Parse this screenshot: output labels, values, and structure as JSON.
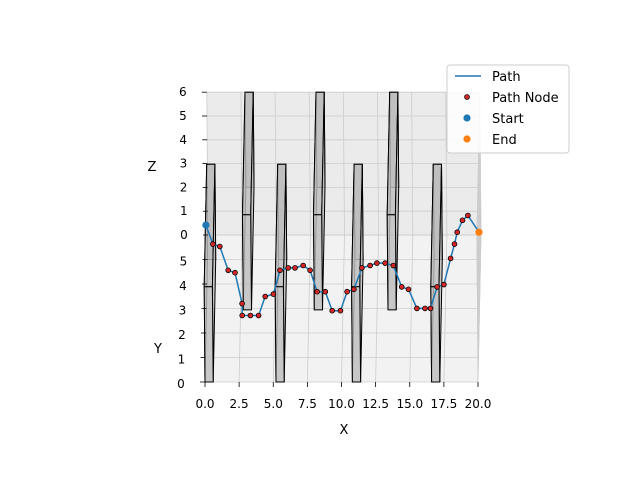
{
  "chart_data": {
    "type": "line",
    "projection": "3d",
    "axes": {
      "x": {
        "label": "X",
        "range": [
          0,
          20
        ],
        "ticks": [
          "0.0",
          "2.5",
          "5.0",
          "7.5",
          "10.0",
          "12.5",
          "15.0",
          "17.5",
          "20.0"
        ]
      },
      "y": {
        "label": "Y",
        "range": [
          0,
          6
        ],
        "ticks": [
          "0",
          "1",
          "2",
          "3",
          "4",
          "5"
        ]
      },
      "z": {
        "label": "Z",
        "range": [
          0,
          6
        ],
        "ticks": [
          "0",
          "1",
          "2",
          "3",
          "4",
          "5",
          "6"
        ]
      }
    },
    "grid": true,
    "legend": {
      "placement": "top-right",
      "entries": [
        {
          "label": "Path",
          "marker": "line",
          "color": "#1f77b4"
        },
        {
          "label": "Path Node",
          "marker": "dot",
          "color": "#d62728"
        },
        {
          "label": "Start",
          "marker": "dot",
          "color": "#1f77b4"
        },
        {
          "label": "End",
          "marker": "dot",
          "color": "#ff7f0e"
        }
      ]
    },
    "obstacle_color": "#bdbdbd",
    "obstacles": [
      {
        "x": [
          0.0,
          0.6
        ],
        "y": [
          0,
          5
        ],
        "z": [
          0,
          4
        ]
      },
      {
        "x": [
          2.8,
          3.4
        ],
        "y": [
          1,
          6
        ],
        "z": [
          2,
          6
        ]
      },
      {
        "x": [
          5.2,
          5.8
        ],
        "y": [
          0,
          5
        ],
        "z": [
          0,
          4
        ]
      },
      {
        "x": [
          8.0,
          8.6
        ],
        "y": [
          1,
          6
        ],
        "z": [
          2,
          6
        ]
      },
      {
        "x": [
          10.8,
          11.4
        ],
        "y": [
          0,
          5
        ],
        "z": [
          0,
          4
        ]
      },
      {
        "x": [
          13.4,
          14.0
        ],
        "y": [
          1,
          6
        ],
        "z": [
          2,
          6
        ]
      },
      {
        "x": [
          16.6,
          17.2
        ],
        "y": [
          0,
          5
        ],
        "z": [
          0,
          4
        ]
      }
    ],
    "path": {
      "start": {
        "x": 0.0,
        "y": 3.2,
        "z": 3.3
      },
      "end": {
        "x": 20.0,
        "y": 3.2,
        "z": 3.0
      },
      "nodes": [
        {
          "x": 0.5,
          "y": 3.2,
          "z": 2.5
        },
        {
          "x": 1.0,
          "y": 3.2,
          "z": 2.4
        },
        {
          "x": 1.6,
          "y": 3.2,
          "z": 1.4
        },
        {
          "x": 2.1,
          "y": 3.2,
          "z": 1.3
        },
        {
          "x": 2.6,
          "y": 3.2,
          "z": 0.0
        },
        {
          "x": 2.6,
          "y": 3.2,
          "z": -0.5
        },
        {
          "x": 3.2,
          "y": 3.2,
          "z": -0.5
        },
        {
          "x": 3.8,
          "y": 3.2,
          "z": -0.5
        },
        {
          "x": 4.3,
          "y": 3.2,
          "z": 0.3
        },
        {
          "x": 4.9,
          "y": 3.2,
          "z": 0.4
        },
        {
          "x": 5.4,
          "y": 3.2,
          "z": 1.4
        },
        {
          "x": 6.0,
          "y": 3.2,
          "z": 1.5
        },
        {
          "x": 6.5,
          "y": 3.2,
          "z": 1.5
        },
        {
          "x": 7.1,
          "y": 3.2,
          "z": 1.6
        },
        {
          "x": 7.6,
          "y": 3.2,
          "z": 1.4
        },
        {
          "x": 8.1,
          "y": 3.2,
          "z": 0.5
        },
        {
          "x": 8.7,
          "y": 3.2,
          "z": 0.5
        },
        {
          "x": 9.2,
          "y": 3.2,
          "z": -0.3
        },
        {
          "x": 9.8,
          "y": 3.2,
          "z": -0.3
        },
        {
          "x": 10.3,
          "y": 3.2,
          "z": 0.5
        },
        {
          "x": 10.8,
          "y": 3.2,
          "z": 0.6
        },
        {
          "x": 11.4,
          "y": 3.2,
          "z": 1.5
        },
        {
          "x": 12.0,
          "y": 3.2,
          "z": 1.6
        },
        {
          "x": 12.5,
          "y": 3.2,
          "z": 1.7
        },
        {
          "x": 13.1,
          "y": 3.2,
          "z": 1.7
        },
        {
          "x": 13.7,
          "y": 3.2,
          "z": 1.6
        },
        {
          "x": 14.3,
          "y": 3.2,
          "z": 0.7
        },
        {
          "x": 14.8,
          "y": 3.2,
          "z": 0.6
        },
        {
          "x": 15.4,
          "y": 3.2,
          "z": -0.2
        },
        {
          "x": 16.0,
          "y": 3.2,
          "z": -0.2
        },
        {
          "x": 16.4,
          "y": 3.2,
          "z": -0.2
        },
        {
          "x": 16.9,
          "y": 3.2,
          "z": 0.7
        },
        {
          "x": 17.4,
          "y": 3.2,
          "z": 0.8
        },
        {
          "x": 17.9,
          "y": 3.2,
          "z": 1.9
        },
        {
          "x": 18.2,
          "y": 3.2,
          "z": 2.5
        },
        {
          "x": 18.4,
          "y": 3.2,
          "z": 3.0
        },
        {
          "x": 18.8,
          "y": 3.2,
          "z": 3.5
        },
        {
          "x": 19.2,
          "y": 3.2,
          "z": 3.7
        }
      ]
    }
  }
}
